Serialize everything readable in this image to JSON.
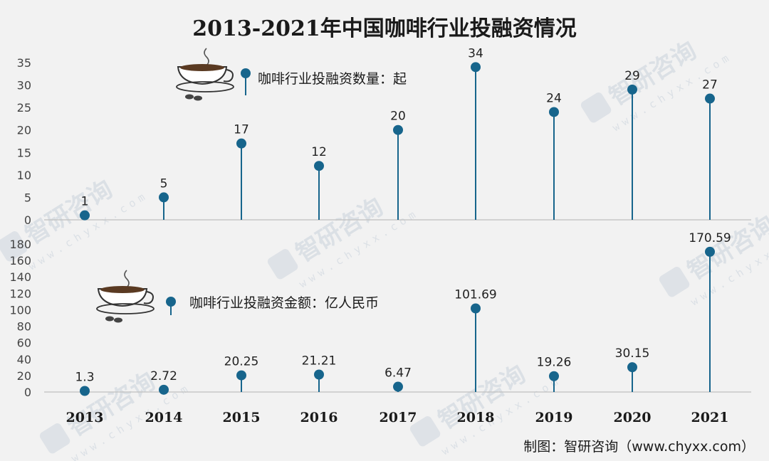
{
  "title": "2013-2021年中国咖啡行业投融资情况",
  "source": "制图：智研咨询（www.chyxx.com）",
  "watermark": {
    "brand": "智研咨询",
    "url": "www.chyxx.com"
  },
  "colors": {
    "background": "#f2f2f2",
    "marker": "#17658c",
    "stem": "#17658c",
    "axis": "#bfbfbf"
  },
  "icons": [
    "coffee-cup-icon",
    "coffee-cup-icon"
  ],
  "chart_data": [
    {
      "type": "lollipop",
      "legend": "咖啡行业投融资数量：起",
      "categories": [
        "2013",
        "2014",
        "2015",
        "2016",
        "2017",
        "2018",
        "2019",
        "2020",
        "2021"
      ],
      "values": [
        1,
        5,
        17,
        12,
        20,
        34,
        24,
        29,
        27
      ],
      "value_labels": [
        "1",
        "5",
        "17",
        "12",
        "20",
        "34",
        "24",
        "29",
        "27"
      ],
      "ylim": [
        0,
        35
      ],
      "yticks": [
        "0",
        "5",
        "10",
        "15",
        "20",
        "25",
        "30",
        "35"
      ],
      "ytick_values": [
        0,
        5,
        10,
        15,
        20,
        25,
        30,
        35
      ]
    },
    {
      "type": "lollipop",
      "legend": "咖啡行业投融资金额：亿人民币",
      "categories": [
        "2013",
        "2014",
        "2015",
        "2016",
        "2017",
        "2018",
        "2019",
        "2020",
        "2021"
      ],
      "values": [
        1.3,
        2.72,
        20.25,
        21.21,
        6.47,
        101.69,
        19.26,
        30.15,
        170.59
      ],
      "value_labels": [
        "1.3",
        "2.72",
        "20.25",
        "21.21",
        "6.47",
        "101.69",
        "19.26",
        "30.15",
        "170.59"
      ],
      "ylim": [
        0,
        180
      ],
      "yticks": [
        "0",
        "20",
        "40",
        "60",
        "80",
        "100",
        "120",
        "140",
        "160",
        "180"
      ],
      "ytick_values": [
        0,
        20,
        40,
        60,
        80,
        100,
        120,
        140,
        160,
        180
      ]
    }
  ]
}
